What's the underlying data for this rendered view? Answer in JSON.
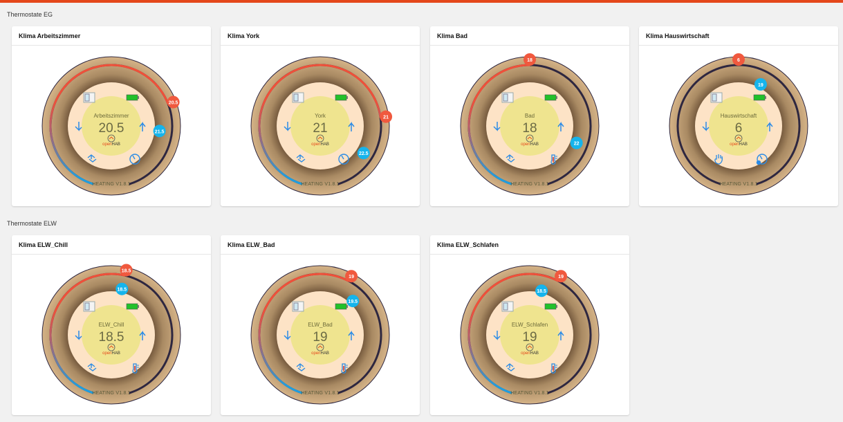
{
  "sections": [
    {
      "title": "Thermostate EG",
      "cards": [
        {
          "title": "Klima Arbeitszimmer",
          "name": "Arbeitszimmer",
          "value": "20.5",
          "current": "20.5",
          "setpoint": "21.5",
          "mode_icon": "auto-cycle-icon",
          "status_icon": "gauge-icon"
        },
        {
          "title": "Klima York",
          "name": "York",
          "value": "21",
          "current": "21",
          "setpoint": "22.5",
          "mode_icon": "auto-cycle-icon",
          "status_icon": "gauge-icon"
        },
        {
          "title": "Klima Bad",
          "name": "Bad",
          "value": "18",
          "current": "18",
          "setpoint": "22",
          "mode_icon": "auto-cycle-icon",
          "status_icon": "thermometer-icon"
        },
        {
          "title": "Klima Hauswirtschaft",
          "name": "Hauswirtschaft",
          "value": "6",
          "current": "6",
          "setpoint": "19",
          "mode_icon": "hand-icon",
          "status_icon": "gauge-check-icon"
        }
      ]
    },
    {
      "title": "Thermostate ELW",
      "cards": [
        {
          "title": "Klima ELW_Chill",
          "name": "ELW_Chill",
          "value": "18.5",
          "current": "18.5",
          "setpoint": "18.5",
          "mode_icon": "auto-cycle-icon",
          "status_icon": "thermometer-icon"
        },
        {
          "title": "Klima ELW_Bad",
          "name": "ELW_Bad",
          "value": "19",
          "current": "19",
          "setpoint": "19.5",
          "mode_icon": "auto-cycle-icon",
          "status_icon": "thermometer-icon"
        },
        {
          "title": "Klima ELW_Schlafen",
          "name": "ELW_Schlafen",
          "value": "19",
          "current": "19",
          "setpoint": "18.5",
          "mode_icon": "auto-cycle-icon",
          "status_icon": "thermometer-icon"
        }
      ]
    }
  ],
  "footer_label": "HEATING V1.8.1",
  "logo_text": "openHAB",
  "colors": {
    "accent": "#e4471b",
    "current_marker": "#f0593e",
    "setpoint_marker": "#15b4ec",
    "icon": "#2b8be6",
    "battery": "#22c12a",
    "arc_off": "#2e2740"
  }
}
